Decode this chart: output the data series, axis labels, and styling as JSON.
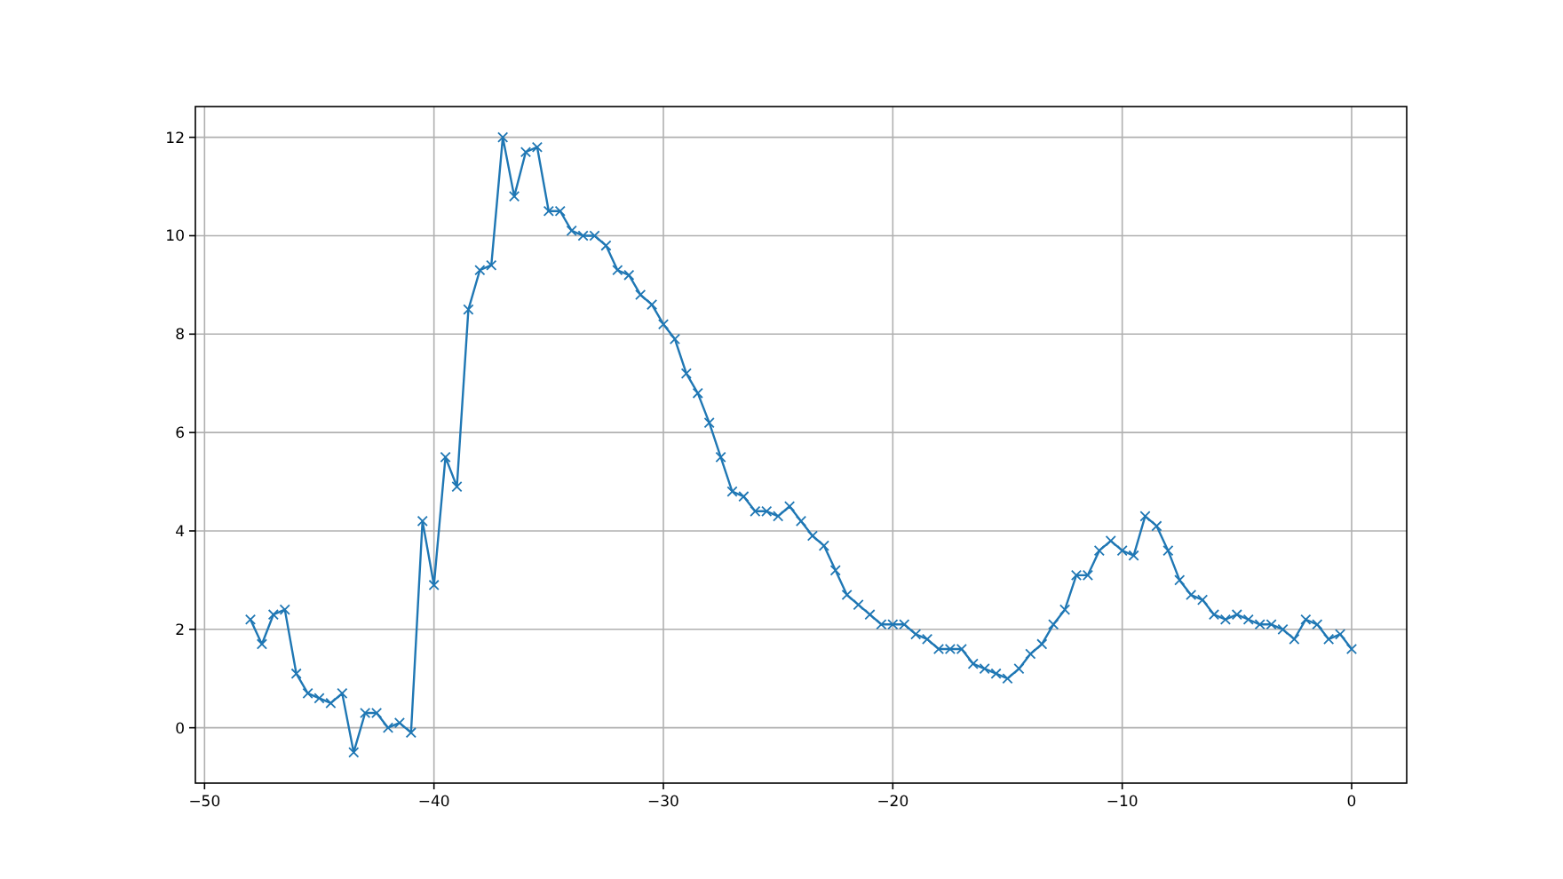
{
  "chart_data": {
    "type": "line",
    "x": [
      -48,
      -47.5,
      -47,
      -46.5,
      -46,
      -45.5,
      -45,
      -44.5,
      -44,
      -43.5,
      -43,
      -42.5,
      -42,
      -41.5,
      -41,
      -40.5,
      -40,
      -39.5,
      -39,
      -38.5,
      -38,
      -37.5,
      -37,
      -36.5,
      -36,
      -35.5,
      -35,
      -34.5,
      -34,
      -33.5,
      -33,
      -32.5,
      -32,
      -31.5,
      -31,
      -30.5,
      -30,
      -29.5,
      -29,
      -28.5,
      -28,
      -27.5,
      -27,
      -26.5,
      -26,
      -25.5,
      -25,
      -24.5,
      -24,
      -23.5,
      -23,
      -22.5,
      -22,
      -21.5,
      -21,
      -20.5,
      -20,
      -19.5,
      -19,
      -18.5,
      -18,
      -17.5,
      -17,
      -16.5,
      -16,
      -15.5,
      -15,
      -14.5,
      -14,
      -13.5,
      -13,
      -12.5,
      -12,
      -11.5,
      -11,
      -10.5,
      -10,
      -9.5,
      -9,
      -8.5,
      -8,
      -7.5,
      -7,
      -6.5,
      -6,
      -5.5,
      -5,
      -4.5,
      -4,
      -3.5,
      -3,
      -2.5,
      -2,
      -1.5,
      -1,
      -0.5,
      0
    ],
    "series": [
      {
        "color": "#1f77b4",
        "values": [
          2.2,
          1.7,
          2.3,
          2.4,
          1.1,
          0.7,
          0.6,
          0.5,
          0.7,
          -0.5,
          0.3,
          0.3,
          0.0,
          0.1,
          -0.1,
          4.2,
          2.9,
          5.5,
          4.9,
          8.5,
          9.3,
          9.4,
          12.0,
          10.8,
          11.7,
          11.8,
          10.5,
          10.5,
          10.1,
          10.0,
          10.0,
          9.8,
          9.3,
          9.2,
          8.8,
          8.6,
          8.2,
          7.9,
          7.2,
          6.8,
          6.2,
          5.5,
          4.8,
          4.7,
          4.4,
          4.4,
          4.3,
          4.5,
          4.2,
          3.9,
          3.7,
          3.2,
          2.7,
          2.5,
          2.3,
          2.1,
          2.1,
          2.1,
          1.9,
          1.8,
          1.6,
          1.6,
          1.6,
          1.3,
          1.2,
          1.1,
          1.0,
          1.2,
          1.5,
          1.7,
          2.1,
          2.4,
          3.1,
          3.1,
          3.6,
          3.8,
          3.6,
          3.5,
          4.3,
          4.1,
          3.6,
          3.0,
          2.7,
          2.6,
          2.3,
          2.2,
          2.3,
          2.2,
          2.1,
          2.1,
          2.0,
          1.8,
          2.2,
          2.1,
          1.8,
          1.9,
          1.6
        ]
      }
    ],
    "xlim": [
      -50.4,
      2.4
    ],
    "xticks": [
      {
        "value": -50,
        "label": "−50"
      },
      {
        "value": -40,
        "label": "−40"
      },
      {
        "value": -30,
        "label": "−30"
      },
      {
        "value": -20,
        "label": "−20"
      },
      {
        "value": -10,
        "label": "−10"
      },
      0
    ],
    "ylim": [
      -1.125,
      12.625
    ],
    "yticks": [
      0,
      2,
      4,
      6,
      8,
      10,
      12
    ],
    "grid": true,
    "marker": "cross",
    "line_style": "solid"
  }
}
